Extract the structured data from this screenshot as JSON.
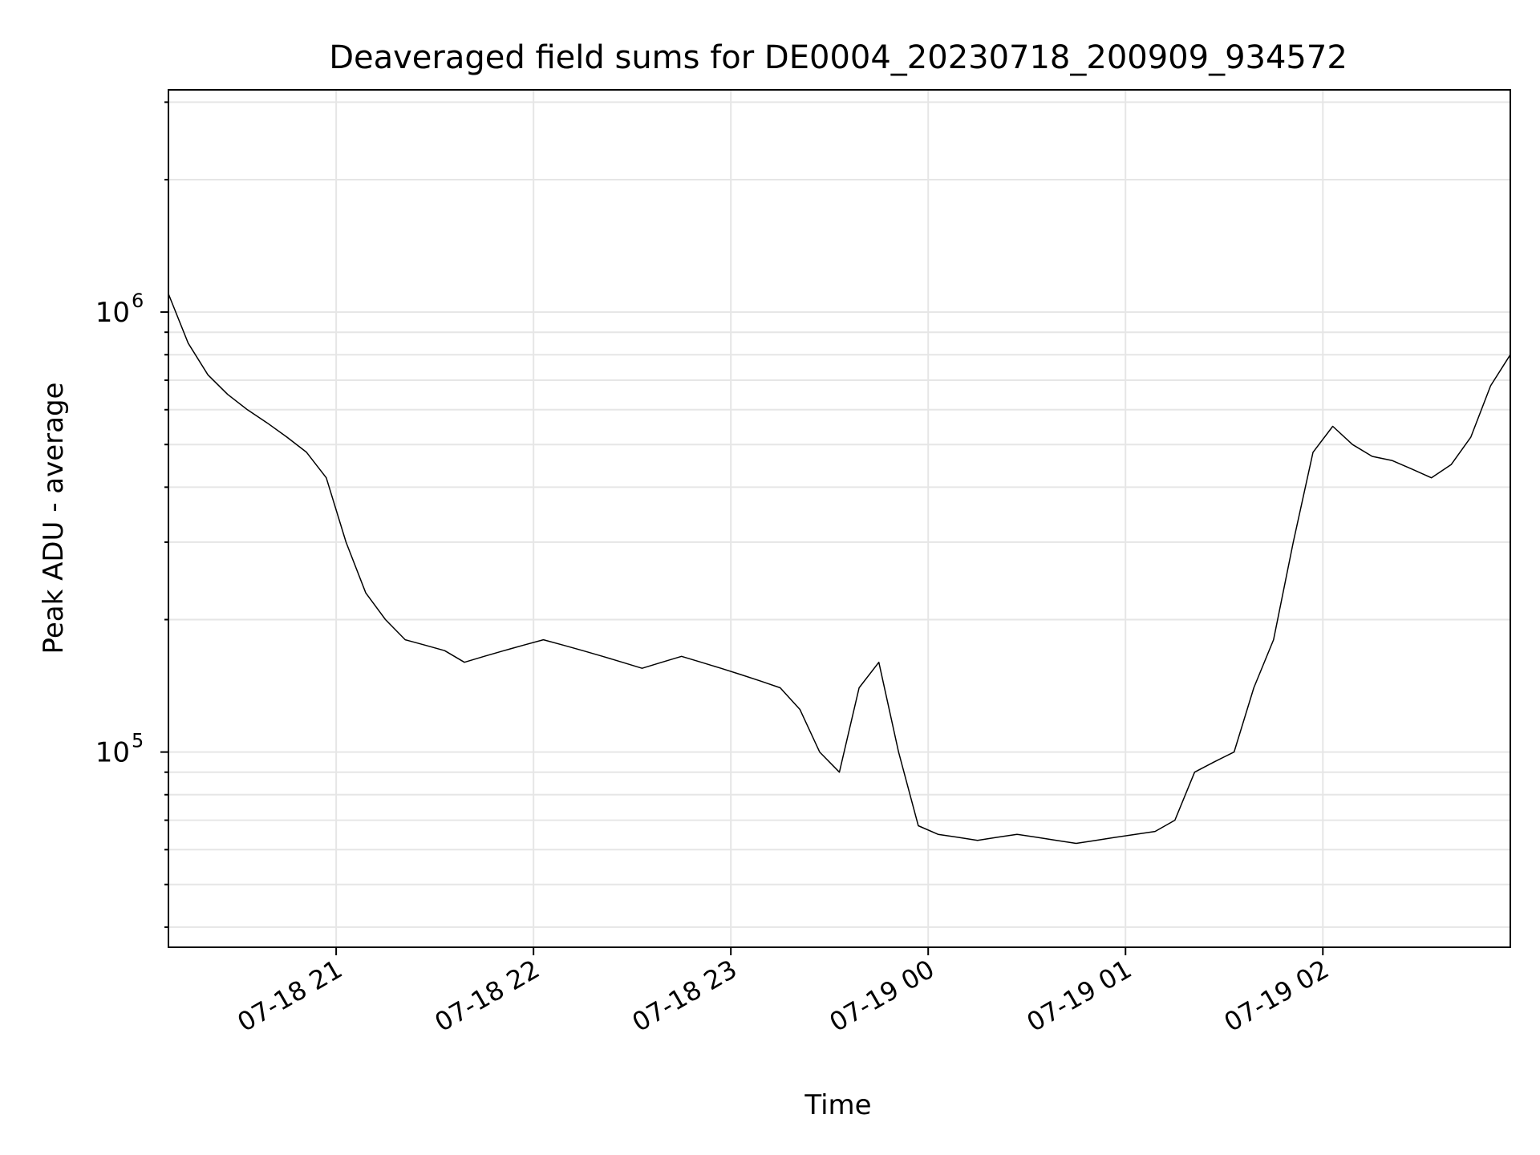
{
  "chart_data": {
    "type": "line",
    "title": "Deaveraged field sums for DE0004_20230718_200909_934572",
    "xlabel": "Time",
    "ylabel": "Peak ADU - average",
    "yscale": "log",
    "ylim": [
      36000,
      3200000
    ],
    "xlim": [
      "2023-07-18 20:09",
      "2023-07-19 02:57"
    ],
    "grid": true,
    "x_ticks": [
      {
        "label": "07-18 21",
        "t": "2023-07-18 21:00"
      },
      {
        "label": "07-18 22",
        "t": "2023-07-18 22:00"
      },
      {
        "label": "07-18 23",
        "t": "2023-07-18 23:00"
      },
      {
        "label": "07-19 00",
        "t": "2023-07-19 00:00"
      },
      {
        "label": "07-19 01",
        "t": "2023-07-19 01:00"
      },
      {
        "label": "07-19 02",
        "t": "2023-07-19 02:00"
      }
    ],
    "y_ticks": [
      {
        "base": "10",
        "exp": "5",
        "value": 100000
      },
      {
        "base": "10",
        "exp": "6",
        "value": 1000000
      }
    ],
    "series": [
      {
        "color": "#000000",
        "points": [
          [
            "2023-07-18 20:09",
            1100000
          ],
          [
            "2023-07-18 20:15",
            850000
          ],
          [
            "2023-07-18 20:21",
            720000
          ],
          [
            "2023-07-18 20:27",
            650000
          ],
          [
            "2023-07-18 20:33",
            600000
          ],
          [
            "2023-07-18 20:39",
            560000
          ],
          [
            "2023-07-18 20:45",
            520000
          ],
          [
            "2023-07-18 20:51",
            480000
          ],
          [
            "2023-07-18 20:57",
            420000
          ],
          [
            "2023-07-18 21:03",
            300000
          ],
          [
            "2023-07-18 21:09",
            230000
          ],
          [
            "2023-07-18 21:15",
            200000
          ],
          [
            "2023-07-18 21:21",
            180000
          ],
          [
            "2023-07-18 21:27",
            175000
          ],
          [
            "2023-07-18 21:33",
            170000
          ],
          [
            "2023-07-18 21:39",
            160000
          ],
          [
            "2023-07-18 21:45",
            165000
          ],
          [
            "2023-07-18 21:51",
            170000
          ],
          [
            "2023-07-18 21:57",
            175000
          ],
          [
            "2023-07-18 22:03",
            180000
          ],
          [
            "2023-07-18 22:09",
            175000
          ],
          [
            "2023-07-18 22:15",
            170000
          ],
          [
            "2023-07-18 22:21",
            165000
          ],
          [
            "2023-07-18 22:27",
            160000
          ],
          [
            "2023-07-18 22:33",
            155000
          ],
          [
            "2023-07-18 22:39",
            160000
          ],
          [
            "2023-07-18 22:45",
            165000
          ],
          [
            "2023-07-18 22:51",
            160000
          ],
          [
            "2023-07-18 22:57",
            155000
          ],
          [
            "2023-07-18 23:03",
            150000
          ],
          [
            "2023-07-18 23:09",
            145000
          ],
          [
            "2023-07-18 23:15",
            140000
          ],
          [
            "2023-07-18 23:21",
            125000
          ],
          [
            "2023-07-18 23:27",
            100000
          ],
          [
            "2023-07-18 23:33",
            90000
          ],
          [
            "2023-07-18 23:39",
            140000
          ],
          [
            "2023-07-18 23:45",
            160000
          ],
          [
            "2023-07-18 23:51",
            100000
          ],
          [
            "2023-07-18 23:57",
            68000
          ],
          [
            "2023-07-19 00:03",
            65000
          ],
          [
            "2023-07-19 00:09",
            64000
          ],
          [
            "2023-07-19 00:15",
            63000
          ],
          [
            "2023-07-19 00:21",
            64000
          ],
          [
            "2023-07-19 00:27",
            65000
          ],
          [
            "2023-07-19 00:33",
            64000
          ],
          [
            "2023-07-19 00:39",
            63000
          ],
          [
            "2023-07-19 00:45",
            62000
          ],
          [
            "2023-07-19 00:51",
            63000
          ],
          [
            "2023-07-19 00:57",
            64000
          ],
          [
            "2023-07-19 01:03",
            65000
          ],
          [
            "2023-07-19 01:09",
            66000
          ],
          [
            "2023-07-19 01:15",
            70000
          ],
          [
            "2023-07-19 01:21",
            90000
          ],
          [
            "2023-07-19 01:27",
            95000
          ],
          [
            "2023-07-19 01:33",
            100000
          ],
          [
            "2023-07-19 01:39",
            140000
          ],
          [
            "2023-07-19 01:45",
            180000
          ],
          [
            "2023-07-19 01:51",
            300000
          ],
          [
            "2023-07-19 01:57",
            480000
          ],
          [
            "2023-07-19 02:03",
            550000
          ],
          [
            "2023-07-19 02:09",
            500000
          ],
          [
            "2023-07-19 02:15",
            470000
          ],
          [
            "2023-07-19 02:21",
            460000
          ],
          [
            "2023-07-19 02:27",
            440000
          ],
          [
            "2023-07-19 02:33",
            420000
          ],
          [
            "2023-07-19 02:39",
            450000
          ],
          [
            "2023-07-19 02:45",
            520000
          ],
          [
            "2023-07-19 02:51",
            680000
          ],
          [
            "2023-07-19 02:57",
            800000
          ]
        ]
      }
    ]
  }
}
